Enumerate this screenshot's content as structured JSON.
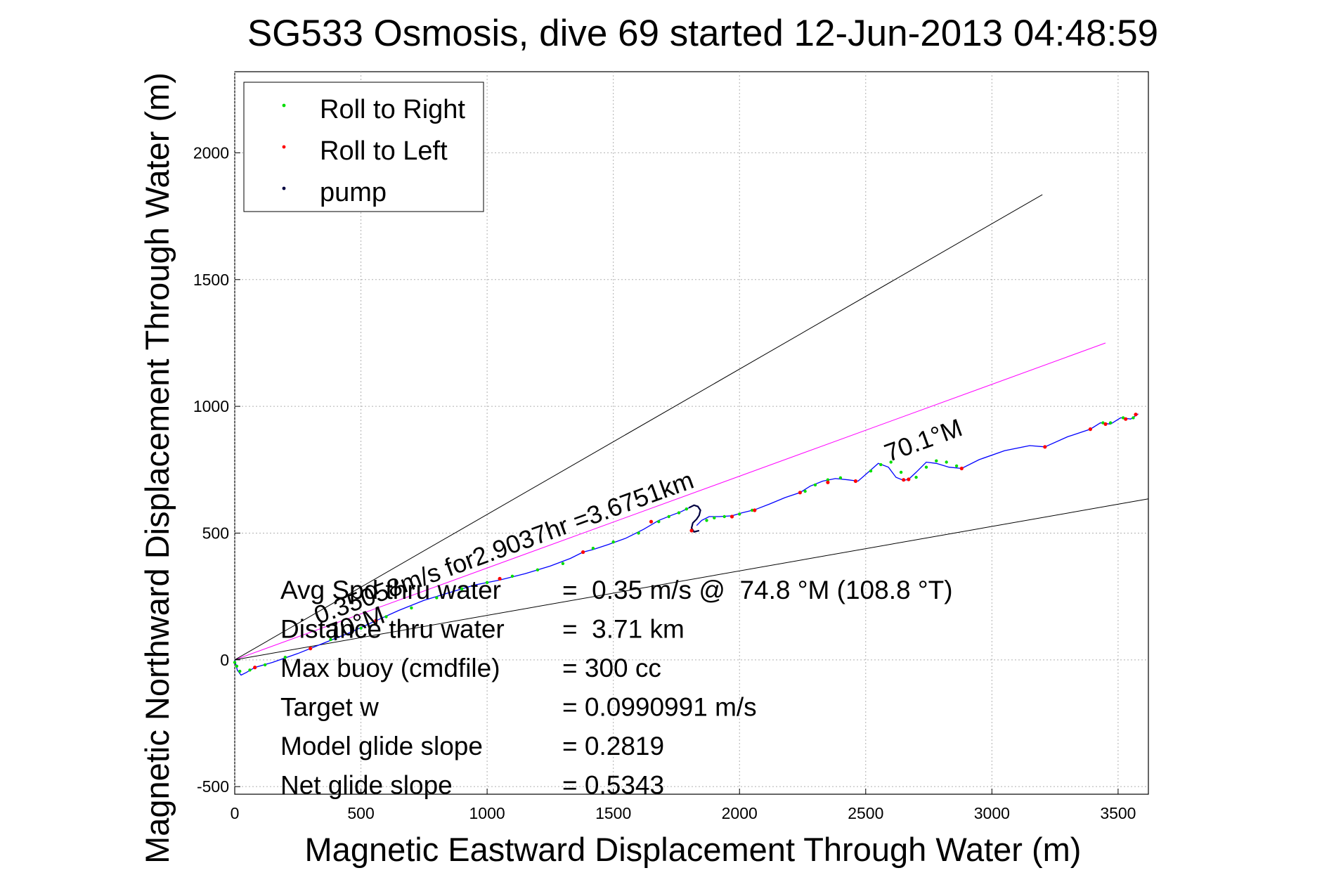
{
  "chart_data": {
    "type": "line",
    "title": "SG533 Osmosis, dive 69 started 12-Jun-2013 04:48:59",
    "xlabel": "Magnetic Eastward Displacement Through Water (m)",
    "ylabel": "Magnetic Northward Displacement Through Water (m)",
    "xlim": [
      0,
      3620
    ],
    "ylim": [
      -530,
      2320
    ],
    "xticks": [
      0,
      500,
      1000,
      1500,
      2000,
      2500,
      3000,
      3500
    ],
    "yticks": [
      -500,
      0,
      500,
      1000,
      1500,
      2000
    ],
    "xtick_labels": [
      "0",
      "500",
      "1000",
      "1500",
      "2000",
      "2500",
      "3000",
      "3500"
    ],
    "ytick_labels": [
      "-500",
      "0",
      "500",
      "1000",
      "1500",
      "2000"
    ],
    "grid": true,
    "legend_position": "top-left",
    "legend": [
      {
        "label": "Roll to Right",
        "color": "#00dd00"
      },
      {
        "label": "Roll to Left",
        "color": "#ff0000"
      },
      {
        "label": "pump",
        "color": "#000040"
      }
    ],
    "series": [
      {
        "color": "#0000ff",
        "x": [
          0,
          10,
          25,
          45,
          80,
          150,
          250,
          350,
          450,
          550,
          650,
          750,
          850,
          950,
          1050,
          1150,
          1250,
          1330,
          1380,
          1420,
          1480,
          1550,
          1620,
          1680,
          1730,
          1770,
          1800
        ],
        "y": [
          0,
          -40,
          -60,
          -50,
          -30,
          -10,
          25,
          65,
          105,
          150,
          195,
          235,
          265,
          295,
          315,
          340,
          370,
          400,
          425,
          435,
          455,
          480,
          515,
          550,
          570,
          585,
          600
        ]
      },
      {
        "color": "#000040",
        "x": [
          1800,
          1820,
          1835,
          1845,
          1840,
          1830,
          1815,
          1810,
          1820,
          1840
        ],
        "y": [
          600,
          610,
          605,
          590,
          570,
          555,
          540,
          520,
          505,
          510
        ]
      },
      {
        "color": "#0000ff",
        "x": [
          1830,
          1850,
          1880,
          1920,
          1970,
          2010,
          2060,
          2120,
          2180,
          2240,
          2280,
          2330,
          2380,
          2430,
          2470,
          2510,
          2550,
          2590,
          2620,
          2650,
          2670,
          2700,
          2740,
          2780,
          2830,
          2880,
          2950,
          3050,
          3150,
          3210,
          3300,
          3390,
          3430,
          3470,
          3510,
          3550,
          3580
        ],
        "y": [
          530,
          550,
          565,
          565,
          568,
          580,
          592,
          615,
          640,
          660,
          685,
          705,
          715,
          710,
          705,
          740,
          775,
          760,
          720,
          708,
          712,
          740,
          780,
          775,
          760,
          755,
          790,
          825,
          845,
          840,
          880,
          910,
          935,
          930,
          955,
          950,
          970
        ]
      },
      {
        "color": "#ff00ff",
        "x": [
          0,
          3450
        ],
        "y": [
          0,
          1250
        ]
      },
      {
        "color": "#000000",
        "x": [
          0,
          3200
        ],
        "y": [
          0,
          1835
        ]
      },
      {
        "color": "#000000",
        "x": [
          0,
          3620
        ],
        "y": [
          0,
          635
        ]
      }
    ],
    "points": {
      "roll_right": {
        "color": "#00dd00",
        "x": [
          0,
          8,
          20,
          60,
          120,
          200,
          300,
          380,
          500,
          600,
          700,
          800,
          900,
          1000,
          1100,
          1200,
          1300,
          1420,
          1500,
          1600,
          1680,
          1720,
          1760,
          1790,
          1870,
          1900,
          1940,
          2000,
          2050,
          2260,
          2300,
          2350,
          2400,
          2460,
          2520,
          2560,
          2600,
          2640,
          2700,
          2740,
          2780,
          2820,
          2860,
          3440,
          3470,
          3520,
          3560
        ],
        "y": [
          -10,
          -25,
          -45,
          -40,
          -20,
          10,
          45,
          80,
          125,
          170,
          205,
          245,
          280,
          305,
          330,
          355,
          380,
          440,
          465,
          500,
          545,
          565,
          580,
          595,
          550,
          560,
          565,
          575,
          590,
          665,
          690,
          710,
          718,
          705,
          745,
          770,
          780,
          740,
          720,
          760,
          785,
          780,
          765,
          935,
          935,
          955,
          955
        ]
      },
      "roll_left": {
        "color": "#ff0000",
        "x": [
          80,
          300,
          560,
          1050,
          1380,
          1650,
          1810,
          1970,
          2060,
          2240,
          2350,
          2460,
          2650,
          2670,
          2880,
          3210,
          3390,
          3450,
          3530,
          3570
        ],
        "y": [
          -30,
          45,
          155,
          320,
          425,
          545,
          510,
          565,
          590,
          660,
          700,
          705,
          710,
          712,
          755,
          840,
          910,
          930,
          950,
          968
        ]
      }
    },
    "annotations": [
      {
        "text": "70.1°M",
        "x": 2590,
        "y": 780,
        "angle_deg": 20
      },
      {
        "text": "0.35058m/s for2.9037hr =3.6751km",
        "x": 330,
        "y": 140,
        "angle_deg": 20
      },
      {
        "text": "70°M",
        "x": 380,
        "y": 70,
        "angle_deg": 20
      }
    ],
    "stats": [
      {
        "label": "Avg Spd thru water",
        "value": "=  0.35 m/s @  74.8 °M (108.8 °T)"
      },
      {
        "label": "Distance thru water",
        "value": "=  3.71 km"
      },
      {
        "label": "Max buoy (cmdfile)",
        "value": "= 300 cc"
      },
      {
        "label": "Target w",
        "value": "= 0.0990991 m/s"
      },
      {
        "label": "Model glide slope",
        "value": "= 0.2819"
      },
      {
        "label": "Net glide slope",
        "value": "= 0.5343"
      }
    ]
  }
}
